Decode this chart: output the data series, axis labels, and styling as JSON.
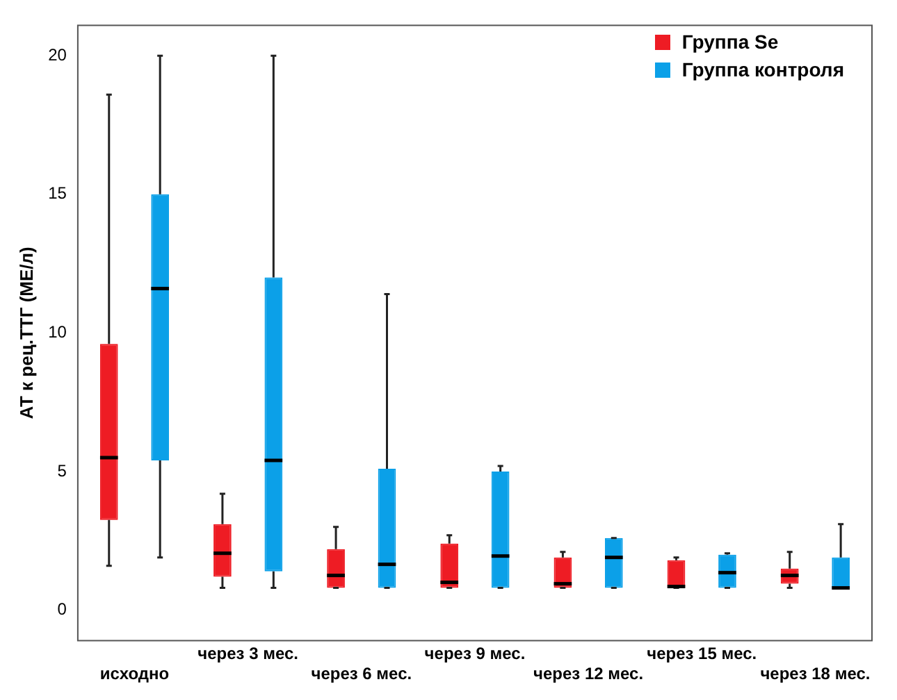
{
  "chart_data": {
    "type": "box",
    "ylabel": "АТ к рец.ТТГ (МЕ/л)",
    "categories": [
      "исходно",
      "через 3 мес.",
      "через 6 мес.",
      "через 9 мес.",
      "через 12 мес.",
      "через 15 мес.",
      "через 18 мес."
    ],
    "ylim": [
      -1.1,
      21.1
    ],
    "yticks": [
      0,
      5,
      10,
      15,
      20
    ],
    "grid": false,
    "legend": "top right",
    "series": [
      {
        "name": "Группа Se",
        "color": "#ee1c24",
        "boxes": [
          {
            "low": 1.6,
            "q1": 3.25,
            "median": 5.5,
            "q3": 9.6,
            "high": 18.6
          },
          {
            "low": 0.8,
            "q1": 1.2,
            "median": 2.05,
            "q3": 3.1,
            "high": 4.2
          },
          {
            "low": 0.8,
            "q1": 0.8,
            "median": 1.25,
            "q3": 2.2,
            "high": 3.0
          },
          {
            "low": 0.8,
            "q1": 0.8,
            "median": 1.0,
            "q3": 2.4,
            "high": 2.7
          },
          {
            "low": 0.8,
            "q1": 0.8,
            "median": 0.95,
            "q3": 1.9,
            "high": 2.1
          },
          {
            "low": 0.8,
            "q1": 0.8,
            "median": 0.85,
            "q3": 1.8,
            "high": 1.9
          },
          {
            "low": 0.8,
            "q1": 0.95,
            "median": 1.25,
            "q3": 1.5,
            "high": 2.1
          }
        ]
      },
      {
        "name": "Группа контроля",
        "color": "#0ba0e8",
        "boxes": [
          {
            "low": 1.9,
            "q1": 5.4,
            "median": 11.6,
            "q3": 15,
            "high": 20
          },
          {
            "low": 0.8,
            "q1": 1.4,
            "median": 5.4,
            "q3": 12,
            "high": 20
          },
          {
            "low": 0.8,
            "q1": 0.8,
            "median": 1.65,
            "q3": 5.1,
            "high": 11.4
          },
          {
            "low": 0.8,
            "q1": 0.8,
            "median": 1.95,
            "q3": 5.0,
            "high": 5.2
          },
          {
            "low": 0.8,
            "q1": 0.8,
            "median": 1.9,
            "q3": 2.6,
            "high": 2.6
          },
          {
            "low": 0.8,
            "q1": 0.8,
            "median": 1.35,
            "q3": 2.0,
            "high": 2.05
          },
          {
            "low": 0.8,
            "q1": 0.8,
            "median": 0.8,
            "q3": 1.9,
            "high": 3.1
          }
        ]
      }
    ]
  }
}
